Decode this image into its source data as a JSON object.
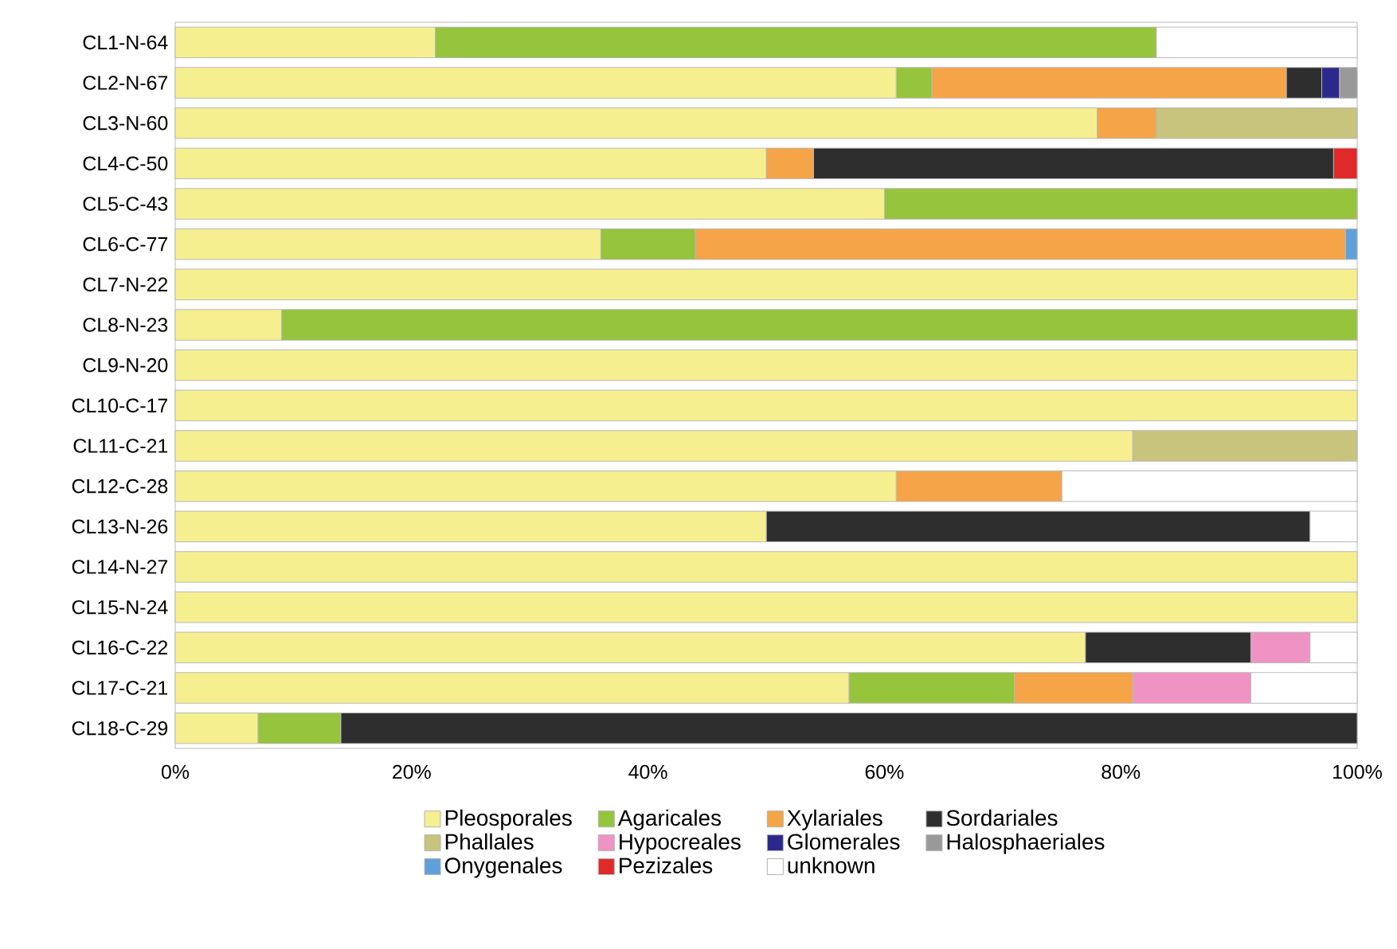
{
  "chart_data": {
    "type": "bar",
    "orientation": "horizontal",
    "stacked": true,
    "legend": "bottom",
    "categories": [
      "CL1-N-64",
      "CL2-N-67",
      "CL3-N-60",
      "CL4-C-50",
      "CL5-C-43",
      "CL6-C-77",
      "CL7-N-22",
      "CL8-N-23",
      "CL9-N-20",
      "CL10-C-17",
      "CL11-C-21",
      "CL12-C-28",
      "CL13-N-26",
      "CL14-N-27",
      "CL15-N-24",
      "CL16-C-22",
      "CL17-C-21",
      "CL18-C-29"
    ],
    "xlim": [
      0,
      100
    ],
    "xticks": [
      {
        "value": 0,
        "label": "0%"
      },
      {
        "value": 20,
        "label": "20%"
      },
      {
        "value": 40,
        "label": "40%"
      },
      {
        "value": 60,
        "label": "60%"
      },
      {
        "value": 80,
        "label": "80%"
      },
      {
        "value": 100,
        "label": "100%"
      }
    ],
    "series": [
      {
        "name": "Pleosporales",
        "color": "#f5ef8f",
        "values": [
          22,
          61,
          78,
          50,
          60,
          36,
          100,
          9,
          100,
          100,
          81,
          61,
          50,
          100,
          100,
          77,
          57,
          7
        ]
      },
      {
        "name": "Agaricales",
        "color": "#96c43c",
        "values": [
          61,
          3,
          0,
          0,
          40,
          8,
          0,
          91,
          0,
          0,
          0,
          0,
          0,
          0,
          0,
          0,
          14,
          7
        ]
      },
      {
        "name": "Xylariales",
        "color": "#f5a447",
        "values": [
          0,
          30,
          5,
          4,
          0,
          55,
          0,
          0,
          0,
          0,
          0,
          14,
          0,
          0,
          0,
          0,
          10,
          0
        ]
      },
      {
        "name": "Sordariales",
        "color": "#2e2e2e",
        "values": [
          0,
          3,
          0,
          44,
          0,
          0,
          0,
          0,
          0,
          0,
          0,
          0,
          46,
          0,
          0,
          14,
          0,
          86
        ]
      },
      {
        "name": "Phallales",
        "color": "#c8c47e",
        "values": [
          0,
          0,
          17,
          0,
          0,
          0,
          0,
          0,
          0,
          0,
          19,
          0,
          0,
          0,
          0,
          0,
          0,
          0
        ]
      },
      {
        "name": "Hypocreales",
        "color": "#ef93c4",
        "values": [
          0,
          0,
          0,
          0,
          0,
          0,
          0,
          0,
          0,
          0,
          0,
          0,
          0,
          0,
          0,
          5,
          10,
          0
        ]
      },
      {
        "name": "Glomerales",
        "color": "#2b2a8c",
        "values": [
          0,
          1.5,
          0,
          0,
          0,
          0,
          0,
          0,
          0,
          0,
          0,
          0,
          0,
          0,
          0,
          0,
          0,
          0
        ]
      },
      {
        "name": "Halosphaeriales",
        "color": "#999999",
        "values": [
          0,
          1.5,
          0,
          0,
          0,
          0,
          0,
          0,
          0,
          0,
          0,
          0,
          0,
          0,
          0,
          0,
          0,
          0
        ]
      },
      {
        "name": "Onygenales",
        "color": "#5fa0d8",
        "values": [
          0,
          0,
          0,
          0,
          0,
          1,
          0,
          0,
          0,
          0,
          0,
          0,
          0,
          0,
          0,
          0,
          0,
          0
        ]
      },
      {
        "name": "Pezizales",
        "color": "#e02929",
        "values": [
          0,
          0,
          0,
          2,
          0,
          0,
          0,
          0,
          0,
          0,
          0,
          0,
          0,
          0,
          0,
          0,
          0,
          0
        ]
      },
      {
        "name": "unknown",
        "color": "#ffffff",
        "values": [
          17,
          0,
          0,
          0,
          0,
          0,
          0,
          0,
          0,
          0,
          0,
          25,
          4,
          0,
          0,
          4,
          9,
          0
        ]
      }
    ]
  }
}
